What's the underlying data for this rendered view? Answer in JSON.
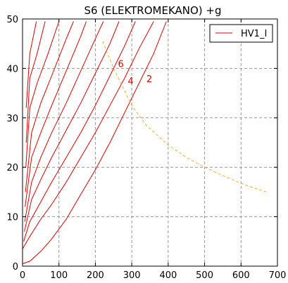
{
  "chart_data": {
    "type": "line",
    "title": "S6 (ELEKTROMEKANO) +g",
    "xlabel": "",
    "ylabel": "",
    "xlim": [
      0,
      700
    ],
    "ylim": [
      0,
      50
    ],
    "xticks": [
      0,
      100,
      200,
      300,
      400,
      500,
      600,
      700
    ],
    "yticks": [
      0,
      10,
      20,
      30,
      40,
      50
    ],
    "grid": true,
    "legend": {
      "placement": "top-right",
      "entries": [
        "HV1_I"
      ]
    },
    "colors": {
      "series": "#e00000",
      "limit": "#f0b040",
      "grid": "#999999"
    },
    "series": [
      {
        "name": "HV1_I",
        "points": [
          [
            0,
            0.5
          ],
          [
            20,
            1
          ],
          [
            50,
            3
          ],
          [
            80,
            5.5
          ],
          [
            120,
            9.5
          ],
          [
            160,
            14.5
          ],
          [
            200,
            19.5
          ],
          [
            240,
            25
          ],
          [
            280,
            31
          ],
          [
            320,
            37
          ],
          [
            360,
            43
          ],
          [
            395,
            49.5
          ]
        ]
      },
      {
        "points": [
          [
            0,
            3.5
          ],
          [
            20,
            6
          ],
          [
            50,
            9.5
          ],
          [
            80,
            12.5
          ],
          [
            120,
            17
          ],
          [
            160,
            22
          ],
          [
            200,
            27
          ],
          [
            240,
            32.5
          ],
          [
            280,
            38
          ],
          [
            320,
            44
          ],
          [
            360,
            49.5
          ]
        ]
      },
      {
        "points": [
          [
            3,
            5
          ],
          [
            20,
            9
          ],
          [
            50,
            13
          ],
          [
            80,
            17
          ],
          [
            120,
            22
          ],
          [
            160,
            27
          ],
          [
            200,
            32.5
          ],
          [
            240,
            38.5
          ],
          [
            280,
            44.5
          ],
          [
            310,
            49.5
          ]
        ]
      },
      {
        "points": [
          [
            5,
            7
          ],
          [
            25,
            13.5
          ],
          [
            50,
            17.5
          ],
          [
            80,
            22
          ],
          [
            120,
            27.5
          ],
          [
            160,
            33
          ],
          [
            200,
            39
          ],
          [
            240,
            45
          ],
          [
            265,
            49.5
          ]
        ]
      },
      {
        "points": [
          [
            6,
            9
          ],
          [
            25,
            17
          ],
          [
            50,
            22
          ],
          [
            80,
            27
          ],
          [
            120,
            33
          ],
          [
            160,
            39.5
          ],
          [
            200,
            46
          ],
          [
            222,
            49.5
          ]
        ]
      },
      {
        "points": [
          [
            7,
            12
          ],
          [
            25,
            22
          ],
          [
            50,
            27
          ],
          [
            80,
            32.5
          ],
          [
            120,
            39.5
          ],
          [
            160,
            46.5
          ],
          [
            175,
            49.5
          ]
        ]
      },
      {
        "points": [
          [
            8,
            15
          ],
          [
            25,
            27
          ],
          [
            50,
            33
          ],
          [
            80,
            38.5
          ],
          [
            120,
            46
          ],
          [
            140,
            49.5
          ]
        ]
      },
      {
        "points": [
          [
            9,
            20
          ],
          [
            20,
            32
          ],
          [
            40,
            37
          ],
          [
            70,
            43
          ],
          [
            100,
            49.5
          ]
        ]
      },
      {
        "points": [
          [
            10,
            25
          ],
          [
            20,
            38
          ],
          [
            40,
            43
          ],
          [
            62,
            49.5
          ]
        ]
      },
      {
        "points": [
          [
            10,
            32
          ],
          [
            20,
            43
          ],
          [
            38,
            49.5
          ]
        ]
      }
    ],
    "limit_curve": {
      "points": [
        [
          220,
          45.5
        ],
        [
          250,
          40
        ],
        [
          280,
          35.5
        ],
        [
          300,
          32.5
        ],
        [
          340,
          28.5
        ],
        [
          400,
          24.5
        ],
        [
          450,
          22
        ],
        [
          500,
          20
        ],
        [
          560,
          18
        ],
        [
          620,
          16.2
        ],
        [
          670,
          15
        ]
      ]
    },
    "annotations": [
      {
        "text": "6",
        "x": 270,
        "y": 40.3
      },
      {
        "text": "4",
        "x": 297,
        "y": 36.8
      },
      {
        "text": "2",
        "x": 348,
        "y": 37.2
      }
    ]
  }
}
